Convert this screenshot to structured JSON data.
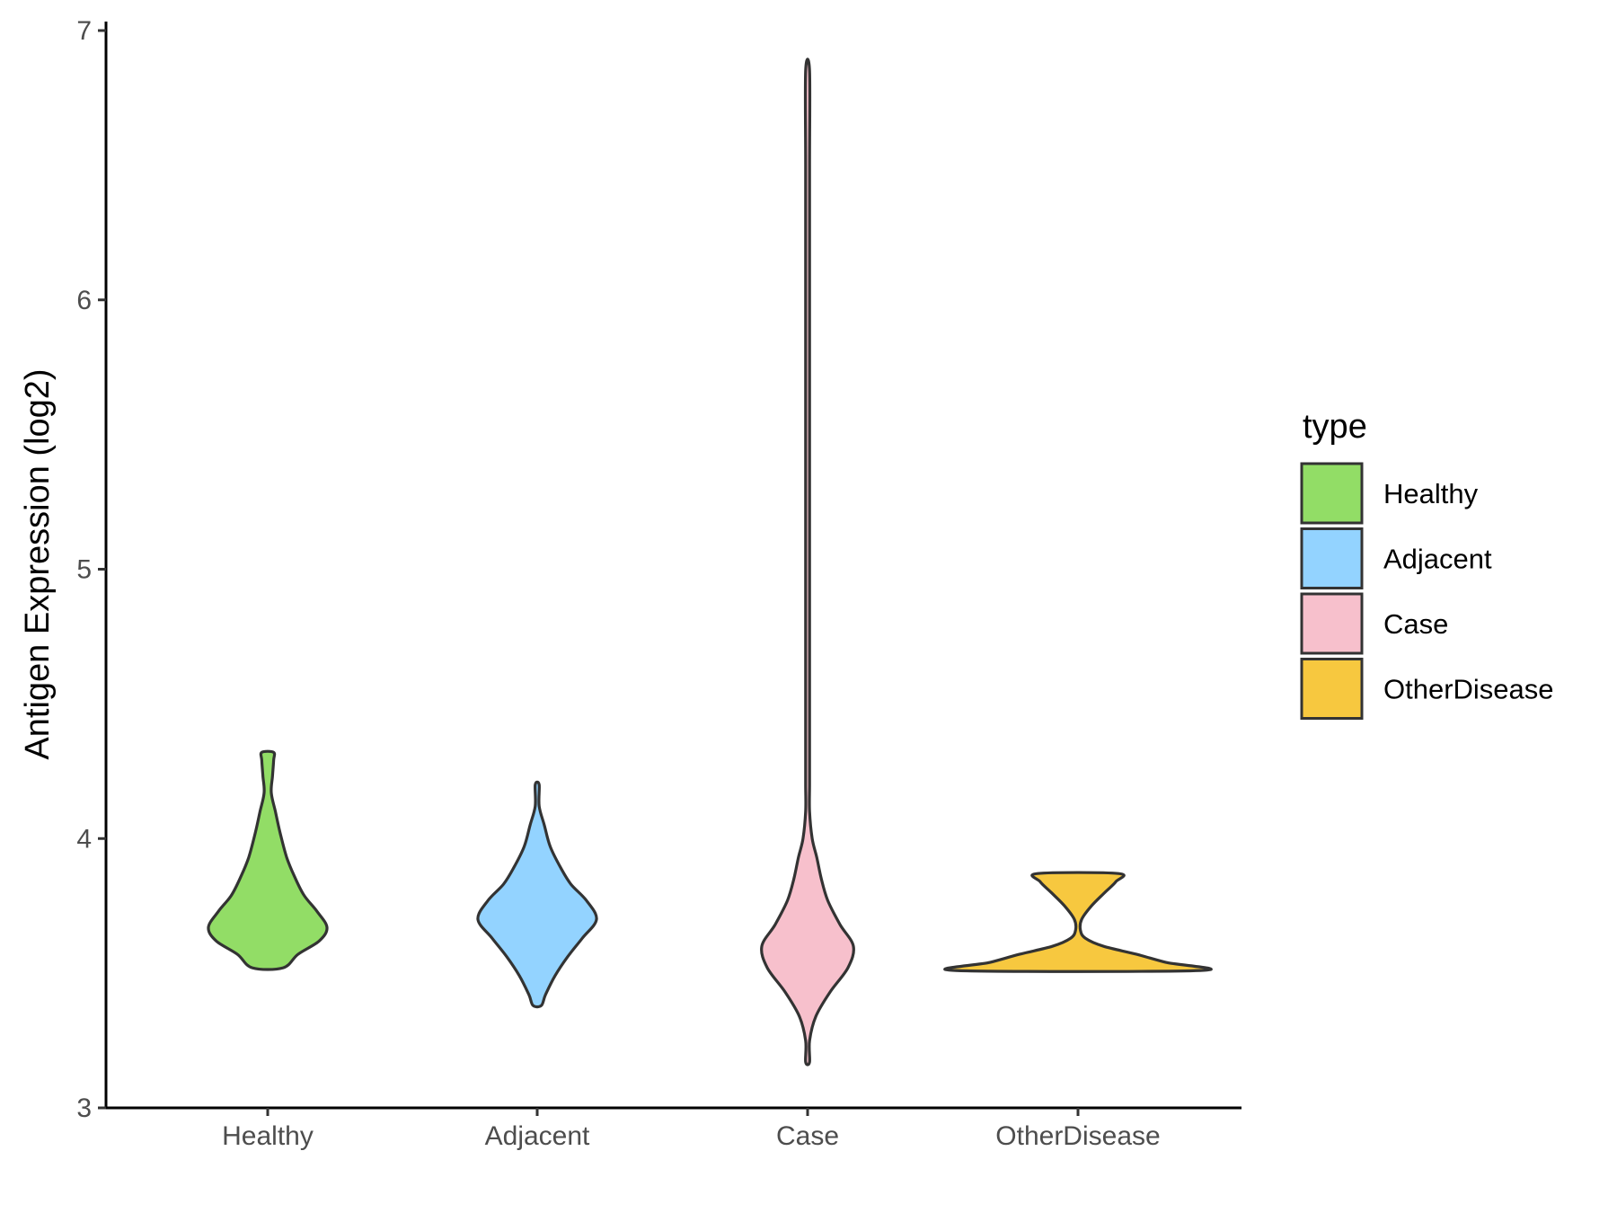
{
  "chart_data": {
    "type": "violin",
    "ylabel": "Antigen Expression (log2)",
    "xlabel": "",
    "ylim": [
      3,
      7
    ],
    "yticks": [
      "3",
      "4",
      "5",
      "6",
      "7"
    ],
    "categories": [
      "Healthy",
      "Adjacent",
      "Case",
      "OtherDisease"
    ],
    "legend": {
      "title": "type",
      "position": "right",
      "entries": [
        "Healthy",
        "Adjacent",
        "Case",
        "OtherDisease"
      ]
    },
    "grid": false,
    "series": [
      {
        "name": "Healthy",
        "color": "#92dd66",
        "min": 3.52,
        "max": 4.32,
        "profile": [
          [
            3.52,
            0.26
          ],
          [
            3.57,
            0.51
          ],
          [
            3.62,
            0.87
          ],
          [
            3.67,
            1.0
          ],
          [
            3.73,
            0.83
          ],
          [
            3.79,
            0.61
          ],
          [
            3.86,
            0.45
          ],
          [
            3.93,
            0.32
          ],
          [
            4.02,
            0.21
          ],
          [
            4.1,
            0.13
          ],
          [
            4.17,
            0.06
          ],
          [
            4.23,
            0.08
          ],
          [
            4.29,
            0.1
          ],
          [
            4.32,
            0.1
          ]
        ]
      },
      {
        "name": "Adjacent",
        "color": "#93d3ff",
        "min": 3.38,
        "max": 4.2,
        "profile": [
          [
            3.38,
            0.07
          ],
          [
            3.42,
            0.14
          ],
          [
            3.49,
            0.3
          ],
          [
            3.56,
            0.51
          ],
          [
            3.63,
            0.76
          ],
          [
            3.7,
            1.0
          ],
          [
            3.77,
            0.83
          ],
          [
            3.83,
            0.57
          ],
          [
            3.89,
            0.4
          ],
          [
            3.97,
            0.22
          ],
          [
            4.05,
            0.12
          ],
          [
            4.12,
            0.02
          ],
          [
            4.2,
            0.01
          ]
        ]
      },
      {
        "name": "Case",
        "color": "#f7c0cc",
        "min": 3.17,
        "max": 6.85,
        "profile": [
          [
            3.17,
            0.0
          ],
          [
            3.25,
            0.04
          ],
          [
            3.34,
            0.18
          ],
          [
            3.43,
            0.49
          ],
          [
            3.52,
            0.88
          ],
          [
            3.6,
            1.0
          ],
          [
            3.68,
            0.71
          ],
          [
            3.77,
            0.44
          ],
          [
            3.85,
            0.3
          ],
          [
            3.93,
            0.2
          ],
          [
            4.0,
            0.1
          ],
          [
            4.1,
            0.03
          ],
          [
            4.2,
            0.03
          ],
          [
            4.32,
            0.03
          ],
          [
            4.45,
            0.02
          ],
          [
            4.7,
            0.01
          ],
          [
            5.0,
            0.01
          ],
          [
            5.5,
            0.0
          ],
          [
            6.0,
            0.0
          ],
          [
            6.5,
            0.0
          ],
          [
            6.85,
            0.0
          ]
        ]
      },
      {
        "name": "OtherDisease",
        "color": "#f7c83f",
        "min": 3.51,
        "max": 3.87,
        "profile": [
          [
            3.51,
            1.0
          ],
          [
            3.54,
            0.72
          ],
          [
            3.57,
            0.48
          ],
          [
            3.6,
            0.21
          ],
          [
            3.63,
            0.06
          ],
          [
            3.66,
            0.02
          ],
          [
            3.7,
            0.03
          ],
          [
            3.75,
            0.11
          ],
          [
            3.8,
            0.22
          ],
          [
            3.84,
            0.31
          ],
          [
            3.87,
            0.33
          ]
        ]
      }
    ]
  },
  "colors": {
    "outline": "#333333",
    "axis": "#000000",
    "tick_label": "#4d4d4d"
  }
}
